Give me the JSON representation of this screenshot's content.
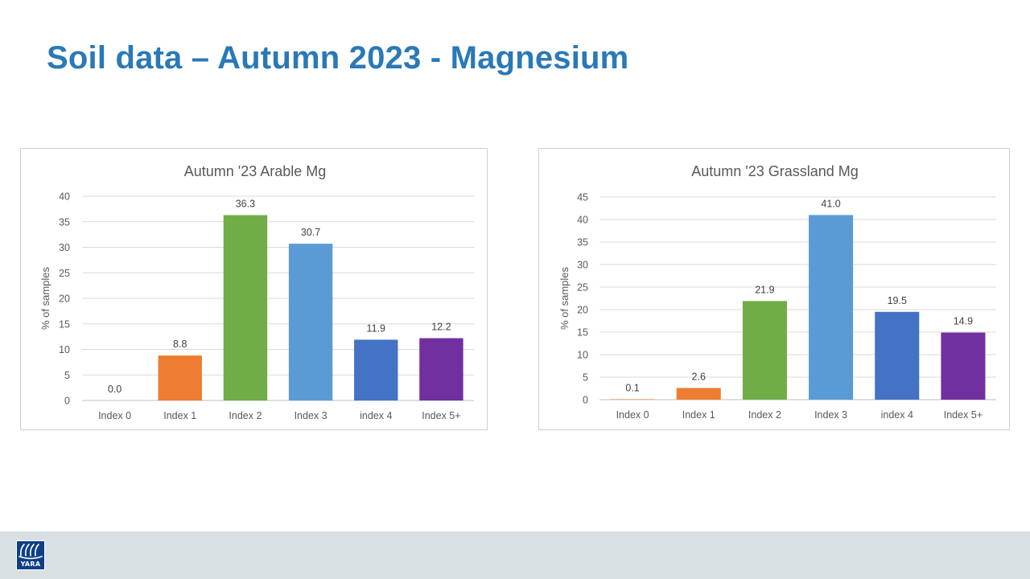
{
  "slide": {
    "title": "Soil data – Autumn 2023 - Magnesium"
  },
  "logo": {
    "text": "YARA"
  },
  "chart_data": [
    {
      "type": "bar",
      "title": "Autumn '23 Arable Mg",
      "ylabel": "% of samples",
      "xlabel": "",
      "categories": [
        "Index 0",
        "Index 1",
        "Index 2",
        "Index 3",
        "index 4",
        "Index 5+"
      ],
      "values": [
        0.0,
        8.8,
        36.3,
        30.7,
        11.9,
        12.2
      ],
      "data_labels": [
        "0.0",
        "8.8",
        "36.3",
        "30.7",
        "11.9",
        "12.2"
      ],
      "colors": [
        "#ed7d31",
        "#ed7d31",
        "#70ad47",
        "#5b9bd5",
        "#4472c4",
        "#7030a0"
      ],
      "ylim": [
        0,
        40
      ],
      "yticks": [
        0,
        5,
        10,
        15,
        20,
        25,
        30,
        35,
        40
      ],
      "grid": true,
      "legend": "none"
    },
    {
      "type": "bar",
      "title": "Autumn '23 Grassland Mg",
      "ylabel": "% of samples",
      "xlabel": "",
      "categories": [
        "Index 0",
        "Index 1",
        "Index 2",
        "Index 3",
        "index 4",
        "Index 5+"
      ],
      "values": [
        0.1,
        2.6,
        21.9,
        41.0,
        19.5,
        14.9
      ],
      "data_labels": [
        "0.1",
        "2.6",
        "21.9",
        "41.0",
        "19.5",
        "14.9"
      ],
      "colors": [
        "#ed7d31",
        "#ed7d31",
        "#70ad47",
        "#5b9bd5",
        "#4472c4",
        "#7030a0"
      ],
      "ylim": [
        0,
        45
      ],
      "yticks": [
        0,
        5,
        10,
        15,
        20,
        25,
        30,
        35,
        40,
        45
      ],
      "grid": true,
      "legend": "none"
    }
  ]
}
